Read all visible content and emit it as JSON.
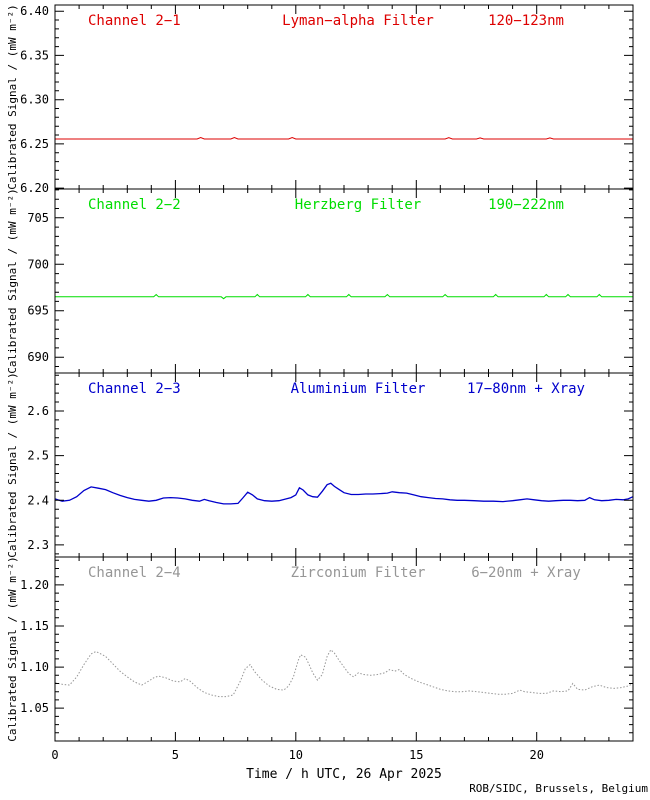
{
  "figure": {
    "xlabel": "Time / h UTC, 26 Apr 2025",
    "ylabel": "Calibrated Signal / (mW m⁻²)",
    "credit": "ROB/SIDC, Brussels, Belgium",
    "background": "#ffffff",
    "axis_color": "#000000",
    "xtick_labels": [
      "0",
      "5",
      "10",
      "15",
      "20"
    ]
  },
  "chart_data": [
    {
      "type": "line",
      "channel": "Channel 2−1",
      "filter": "Lyman−alpha Filter",
      "band": "120−123nm",
      "color": "#dd0000",
      "line_style": "solid",
      "legend_position": "none",
      "grid": false,
      "xlim": [
        0,
        24
      ],
      "xticks": [
        0,
        5,
        10,
        15,
        20
      ],
      "x_minor_step": 1,
      "ylim": [
        6.199,
        6.407
      ],
      "yticks": [
        6.2,
        6.25,
        6.3,
        6.35,
        6.4
      ],
      "ytick_labels": [
        "6.20",
        "6.25",
        "6.30",
        "6.35",
        "6.40"
      ],
      "y_minor_step": 0.01,
      "x": [
        0,
        3,
        5.9,
        6.05,
        6.2,
        7.3,
        7.45,
        7.6,
        9.7,
        9.85,
        10.0,
        13,
        16.2,
        16.35,
        16.5,
        17.5,
        17.65,
        17.8,
        20.4,
        20.55,
        20.7,
        22,
        24
      ],
      "y": [
        6.2555,
        6.2555,
        6.2555,
        6.2572,
        6.2555,
        6.2555,
        6.2572,
        6.2555,
        6.2555,
        6.2572,
        6.2555,
        6.2555,
        6.2555,
        6.257,
        6.2555,
        6.2555,
        6.2568,
        6.2555,
        6.2555,
        6.2568,
        6.2555,
        6.2555,
        6.2555
      ]
    },
    {
      "type": "line",
      "channel": "Channel 2−2",
      "filter": "Herzberg Filter",
      "band": "190−222nm",
      "color": "#00dd00",
      "line_style": "solid",
      "legend_position": "none",
      "grid": false,
      "xlim": [
        0,
        24
      ],
      "xticks": [
        0,
        5,
        10,
        15,
        20
      ],
      "x_minor_step": 1,
      "ylim": [
        688.3,
        708.1
      ],
      "yticks": [
        690,
        695,
        700,
        705
      ],
      "ytick_labels": [
        "690",
        "695",
        "700",
        "705"
      ],
      "y_minor_step": 1,
      "x": [
        0,
        1,
        2,
        3,
        4.1,
        4.2,
        4.3,
        5,
        6,
        6.9,
        7,
        7.1,
        8.3,
        8.4,
        8.5,
        9.5,
        10.4,
        10.5,
        10.6,
        11.5,
        12.1,
        12.2,
        12.3,
        13.7,
        13.8,
        13.9,
        15,
        16.1,
        16.2,
        16.3,
        17.2,
        18.2,
        18.3,
        18.4,
        19.5,
        20.3,
        20.4,
        20.5,
        21.2,
        21.3,
        21.4,
        22.5,
        22.6,
        22.7,
        23.5,
        24
      ],
      "y": [
        696.5,
        696.5,
        696.5,
        696.5,
        696.5,
        696.75,
        696.5,
        696.5,
        696.5,
        696.5,
        696.3,
        696.5,
        696.5,
        696.75,
        696.5,
        696.5,
        696.5,
        696.75,
        696.5,
        696.5,
        696.5,
        696.75,
        696.5,
        696.5,
        696.75,
        696.5,
        696.5,
        696.5,
        696.75,
        696.5,
        696.5,
        696.5,
        696.75,
        696.5,
        696.5,
        696.5,
        696.75,
        696.5,
        696.5,
        696.75,
        696.5,
        696.5,
        696.75,
        696.5,
        696.5,
        696.5
      ]
    },
    {
      "type": "line",
      "channel": "Channel 2−3",
      "filter": "Aluminium Filter",
      "band": "17−80nm + Xray",
      "color": "#0000cc",
      "line_style": "solid",
      "legend_position": "none",
      "grid": false,
      "xlim": [
        0,
        24
      ],
      "xticks": [
        0,
        5,
        10,
        15,
        20
      ],
      "x_minor_step": 1,
      "ylim": [
        2.273,
        2.685
      ],
      "yticks": [
        2.3,
        2.4,
        2.5,
        2.6
      ],
      "ytick_labels": [
        "2.3",
        "2.4",
        "2.5",
        "2.6"
      ],
      "y_minor_step": 0.02,
      "x": [
        0,
        0.3,
        0.6,
        0.9,
        1.2,
        1.5,
        1.8,
        2.1,
        2.4,
        2.7,
        3,
        3.3,
        3.6,
        3.9,
        4.2,
        4.5,
        4.8,
        5.1,
        5.4,
        5.7,
        6,
        6.2,
        6.4,
        6.7,
        7,
        7.3,
        7.6,
        7.8,
        8,
        8.2,
        8.4,
        8.7,
        9,
        9.3,
        9.6,
        9.8,
        10,
        10.15,
        10.3,
        10.5,
        10.7,
        10.9,
        11.1,
        11.3,
        11.45,
        11.6,
        11.8,
        12,
        12.3,
        12.6,
        12.9,
        13.2,
        13.5,
        13.8,
        14,
        14.3,
        14.6,
        14.9,
        15.2,
        15.5,
        15.8,
        16.1,
        16.4,
        16.7,
        17,
        17.4,
        17.8,
        18.2,
        18.6,
        19,
        19.3,
        19.6,
        19.9,
        20.2,
        20.5,
        20.8,
        21.1,
        21.4,
        21.7,
        22,
        22.2,
        22.4,
        22.7,
        23,
        23.3,
        23.6,
        23.8,
        24
      ],
      "y": [
        2.403,
        2.398,
        2.4,
        2.408,
        2.422,
        2.43,
        2.427,
        2.424,
        2.417,
        2.411,
        2.406,
        2.402,
        2.4,
        2.398,
        2.4,
        2.405,
        2.406,
        2.405,
        2.403,
        2.4,
        2.398,
        2.402,
        2.399,
        2.395,
        2.392,
        2.392,
        2.393,
        2.405,
        2.418,
        2.412,
        2.403,
        2.399,
        2.398,
        2.399,
        2.403,
        2.406,
        2.412,
        2.428,
        2.423,
        2.412,
        2.408,
        2.407,
        2.42,
        2.435,
        2.438,
        2.431,
        2.424,
        2.417,
        2.413,
        2.413,
        2.414,
        2.414,
        2.415,
        2.416,
        2.419,
        2.417,
        2.416,
        2.412,
        2.408,
        2.406,
        2.404,
        2.403,
        2.401,
        2.4,
        2.4,
        2.399,
        2.398,
        2.398,
        2.397,
        2.399,
        2.401,
        2.403,
        2.401,
        2.399,
        2.398,
        2.399,
        2.4,
        2.4,
        2.399,
        2.4,
        2.406,
        2.401,
        2.399,
        2.4,
        2.402,
        2.401,
        2.403,
        2.408
      ]
    },
    {
      "type": "line",
      "channel": "Channel 2−4",
      "filter": "Zirconium Filter",
      "band": "6−20nm + Xray",
      "color": "#969696",
      "line_style": "dotted",
      "legend_position": "none",
      "grid": false,
      "xlim": [
        0,
        24
      ],
      "xticks": [
        0,
        5,
        10,
        15,
        20
      ],
      "x_minor_step": 1,
      "ylim": [
        1.01,
        1.234
      ],
      "yticks": [
        1.05,
        1.1,
        1.15,
        1.2
      ],
      "ytick_labels": [
        "1.05",
        "1.10",
        "1.15",
        "1.20"
      ],
      "y_minor_step": 0.01,
      "x": [
        0,
        0.3,
        0.6,
        0.9,
        1.2,
        1.5,
        1.7,
        1.9,
        2.1,
        2.4,
        2.7,
        3,
        3.3,
        3.6,
        3.9,
        4.1,
        4.3,
        4.6,
        4.9,
        5.2,
        5.4,
        5.6,
        5.9,
        6.2,
        6.5,
        6.8,
        7.1,
        7.4,
        7.7,
        7.9,
        8.1,
        8.3,
        8.6,
        8.9,
        9.2,
        9.5,
        9.7,
        9.9,
        10.1,
        10.2,
        10.4,
        10.55,
        10.7,
        10.9,
        11.1,
        11.3,
        11.45,
        11.6,
        11.8,
        12,
        12.2,
        12.4,
        12.6,
        12.8,
        13.1,
        13.4,
        13.7,
        13.9,
        14.1,
        14.3,
        14.5,
        14.8,
        15.1,
        15.4,
        15.7,
        16,
        16.3,
        16.6,
        16.9,
        17.2,
        17.5,
        17.8,
        18.1,
        18.4,
        18.7,
        19,
        19.3,
        19.5,
        19.8,
        20.1,
        20.4,
        20.7,
        21,
        21.3,
        21.5,
        21.7,
        22,
        22.3,
        22.6,
        22.9,
        23.2,
        23.5,
        23.8,
        24
      ],
      "y": [
        1.081,
        1.079,
        1.078,
        1.088,
        1.103,
        1.116,
        1.119,
        1.116,
        1.113,
        1.104,
        1.095,
        1.088,
        1.082,
        1.078,
        1.083,
        1.087,
        1.089,
        1.087,
        1.083,
        1.082,
        1.086,
        1.083,
        1.075,
        1.069,
        1.066,
        1.064,
        1.064,
        1.066,
        1.083,
        1.098,
        1.103,
        1.094,
        1.084,
        1.077,
        1.073,
        1.072,
        1.077,
        1.088,
        1.108,
        1.115,
        1.112,
        1.103,
        1.093,
        1.084,
        1.091,
        1.113,
        1.121,
        1.117,
        1.108,
        1.1,
        1.092,
        1.088,
        1.093,
        1.091,
        1.09,
        1.091,
        1.093,
        1.097,
        1.095,
        1.097,
        1.091,
        1.086,
        1.082,
        1.079,
        1.076,
        1.073,
        1.071,
        1.07,
        1.07,
        1.071,
        1.07,
        1.069,
        1.068,
        1.067,
        1.067,
        1.068,
        1.072,
        1.07,
        1.069,
        1.068,
        1.068,
        1.071,
        1.07,
        1.071,
        1.08,
        1.073,
        1.072,
        1.076,
        1.078,
        1.075,
        1.074,
        1.075,
        1.077,
        1.08
      ]
    }
  ]
}
